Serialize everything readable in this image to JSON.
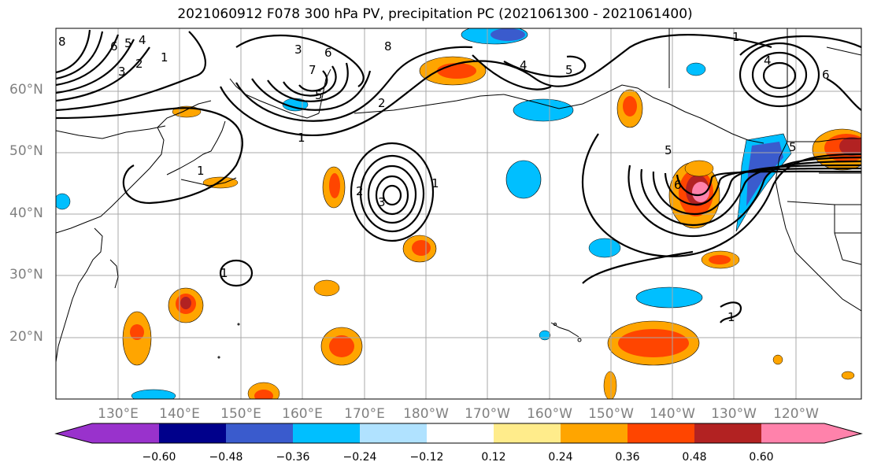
{
  "title": "2021060912 F078 300 hPa PV, precipitation PC (2021061300 - 2021061400)",
  "latitude_labels": [
    "60°N",
    "50°N",
    "40°N",
    "30°N",
    "20°N"
  ],
  "longitude_labels": [
    "130°E",
    "140°E",
    "150°E",
    "160°E",
    "170°E",
    "180°W",
    "170°W",
    "160°W",
    "150°W",
    "140°W",
    "130°W",
    "120°W"
  ],
  "colorbar": {
    "ticks": [
      "−0.60",
      "−0.48",
      "−0.36",
      "−0.24",
      "−0.12",
      "0.12",
      "0.24",
      "0.36",
      "0.48",
      "0.60"
    ],
    "colors": [
      "#9932cc",
      "#00008b",
      "#3a5bcd",
      "#00bfff",
      "#b0e2ff",
      "#ffffff",
      "#ffec8b",
      "#ffa500",
      "#ff4500",
      "#b22222",
      "#ff82ab"
    ]
  },
  "contour_labels": [
    "8",
    "6",
    "5",
    "4",
    "3",
    "2",
    "1",
    "3",
    "7",
    "6",
    "5",
    "2",
    "1",
    "8",
    "4",
    "5",
    "1",
    "2",
    "3",
    "1",
    "5",
    "6",
    "1",
    "4",
    "6",
    "5",
    "1",
    "1"
  ]
}
